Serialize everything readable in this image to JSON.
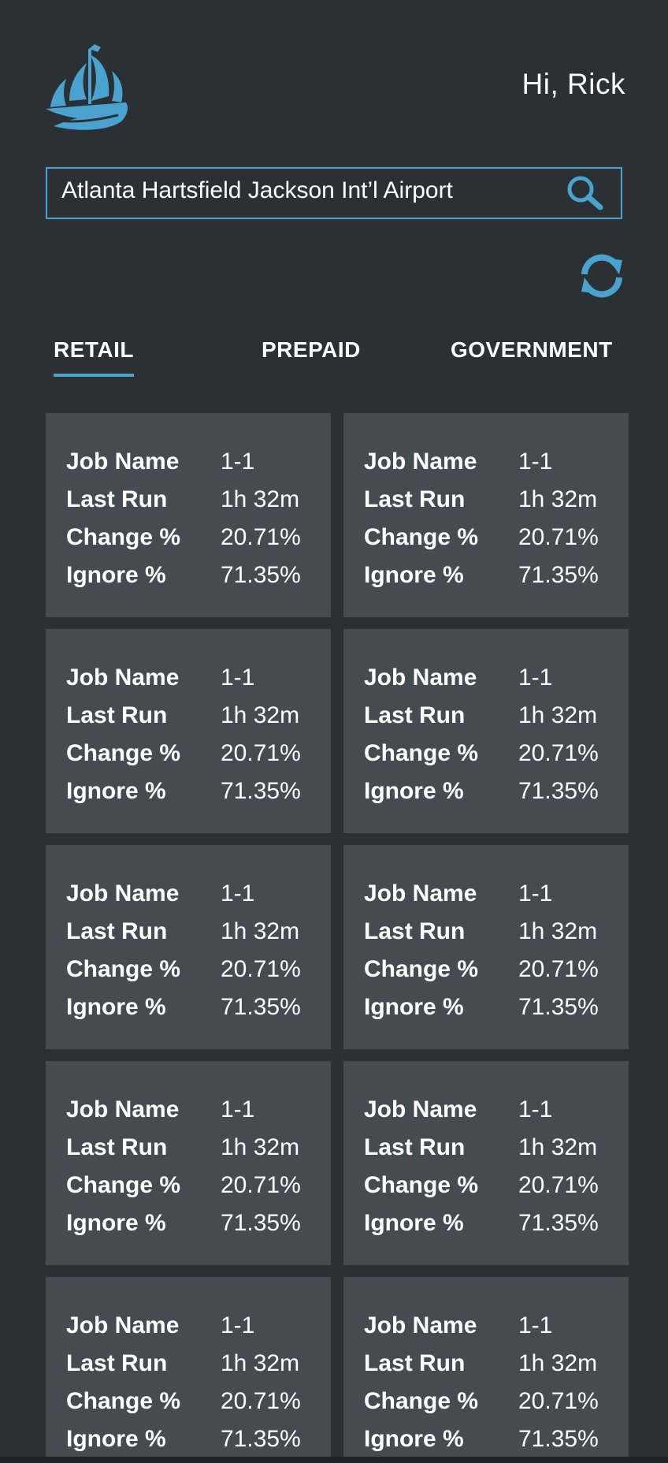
{
  "header": {
    "logo_icon": "ship-logo-icon",
    "greeting": "Hi, Rick"
  },
  "search": {
    "value": "Atlanta Hartsfield Jackson Int’l Airport",
    "placeholder": "",
    "icon": "search-icon"
  },
  "refresh": {
    "icon": "refresh-icon"
  },
  "tabs": [
    {
      "label": "RETAIL",
      "active": true
    },
    {
      "label": "PREPAID",
      "active": false
    },
    {
      "label": "GOVERNMENT",
      "active": false
    }
  ],
  "cards": [
    {
      "job_label": "Job Name",
      "job": "1-1",
      "run_label": "Last Run",
      "run": "1h 32m",
      "change_label": "Change %",
      "change": "20.71%",
      "ignore_label": "Ignore %",
      "ignore": "71.35%"
    },
    {
      "job_label": "Job Name",
      "job": "1-1",
      "run_label": "Last Run",
      "run": "1h 32m",
      "change_label": "Change %",
      "change": "20.71%",
      "ignore_label": "Ignore %",
      "ignore": "71.35%"
    },
    {
      "job_label": "Job Name",
      "job": "1-1",
      "run_label": "Last Run",
      "run": "1h 32m",
      "change_label": "Change %",
      "change": "20.71%",
      "ignore_label": "Ignore %",
      "ignore": "71.35%"
    },
    {
      "job_label": "Job Name",
      "job": "1-1",
      "run_label": "Last Run",
      "run": "1h 32m",
      "change_label": "Change %",
      "change": "20.71%",
      "ignore_label": "Ignore %",
      "ignore": "71.35%"
    },
    {
      "job_label": "Job Name",
      "job": "1-1",
      "run_label": "Last Run",
      "run": "1h 32m",
      "change_label": "Change %",
      "change": "20.71%",
      "ignore_label": "Ignore %",
      "ignore": "71.35%"
    },
    {
      "job_label": "Job Name",
      "job": "1-1",
      "run_label": "Last Run",
      "run": "1h 32m",
      "change_label": "Change %",
      "change": "20.71%",
      "ignore_label": "Ignore %",
      "ignore": "71.35%"
    },
    {
      "job_label": "Job Name",
      "job": "1-1",
      "run_label": "Last Run",
      "run": "1h 32m",
      "change_label": "Change %",
      "change": "20.71%",
      "ignore_label": "Ignore %",
      "ignore": "71.35%"
    },
    {
      "job_label": "Job Name",
      "job": "1-1",
      "run_label": "Last Run",
      "run": "1h 32m",
      "change_label": "Change %",
      "change": "20.71%",
      "ignore_label": "Ignore %",
      "ignore": "71.35%"
    },
    {
      "job_label": "Job Name",
      "job": "1-1",
      "run_label": "Last Run",
      "run": "1h 32m",
      "change_label": "Change %",
      "change": "20.71%",
      "ignore_label": "Ignore %",
      "ignore": "71.35%"
    },
    {
      "job_label": "Job Name",
      "job": "1-1",
      "run_label": "Last Run",
      "run": "1h 32m",
      "change_label": "Change %",
      "change": "20.71%",
      "ignore_label": "Ignore %",
      "ignore": "71.35%"
    }
  ],
  "colors": {
    "background": "#2b3034",
    "card": "#454b51",
    "accent": "#4aa3cf",
    "text": "#ffffff"
  }
}
